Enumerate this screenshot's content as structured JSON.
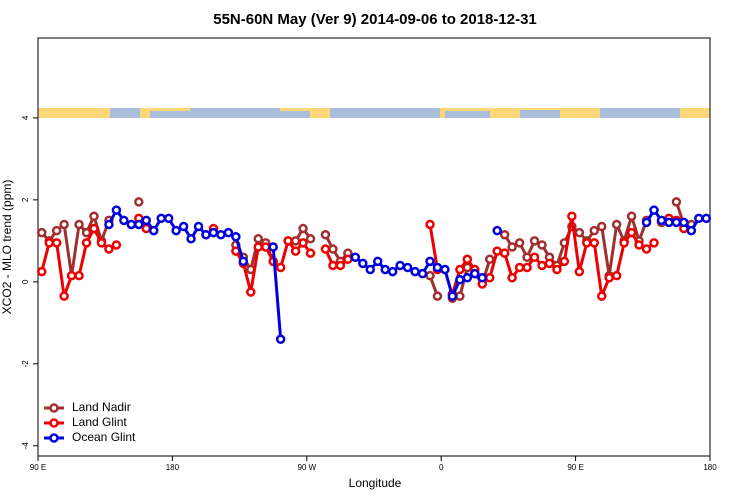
{
  "chart_data": {
    "type": "line",
    "title": "55N-60N May (Ver 9)   2014-09-06 to 2018-12-31",
    "x_label": "Longitude",
    "y_label": "XCO2 - MLO trend (ppm)",
    "x": [
      92.5,
      97.5,
      102.5,
      107.5,
      112.5,
      117.5,
      122.5,
      127.5,
      132.5,
      137.5,
      142.5,
      147.5,
      152.5,
      157.5,
      162.5,
      167.5,
      172.5,
      177.5,
      182.5,
      187.5,
      192.5,
      197.5,
      202.5,
      207.5,
      212.5,
      217.5,
      222.5,
      227.5,
      232.5,
      237.5,
      242.5,
      247.5,
      252.5,
      257.5,
      262.5,
      267.5,
      272.5,
      277.5,
      282.5,
      287.5,
      292.5,
      297.5,
      302.5,
      307.5,
      312.5,
      317.5,
      322.5,
      327.5,
      332.5,
      337.5,
      342.5,
      347.5,
      352.5,
      357.5,
      362.5,
      367.5,
      372.5,
      377.5,
      382.5,
      387.5,
      392.5,
      397.5,
      402.5,
      407.5,
      412.5,
      417.5,
      422.5,
      427.5,
      432.5,
      437.5,
      442.5,
      447.5,
      452.5,
      457.5,
      462.5,
      467.5,
      472.5,
      477.5,
      482.5,
      487.5,
      492.5,
      497.5,
      502.5,
      507.5,
      512.5,
      517.5,
      522.5,
      527.5,
      532.5,
      537.5
    ],
    "series": [
      {
        "name": "Land Nadir",
        "color": "#a03030",
        "values": [
          1.2,
          1.0,
          1.25,
          1.4,
          0.15,
          1.4,
          1.2,
          1.6,
          1.0,
          1.5,
          null,
          null,
          null,
          1.95,
          null,
          null,
          null,
          null,
          null,
          null,
          null,
          null,
          null,
          null,
          null,
          null,
          0.9,
          0.6,
          0.3,
          1.05,
          0.95,
          0.5,
          null,
          1.0,
          1.0,
          1.3,
          1.05,
          null,
          1.15,
          0.8,
          0.5,
          0.7,
          null,
          null,
          null,
          null,
          null,
          null,
          null,
          null,
          null,
          null,
          0.15,
          -0.35,
          null,
          -0.4,
          -0.35,
          0.35,
          0.2,
          -0.05,
          0.55,
          null,
          1.15,
          0.85,
          0.95,
          0.6,
          1.0,
          0.9,
          0.6,
          0.4,
          0.95,
          1.35,
          1.2,
          1.0,
          1.25,
          1.35,
          0.15,
          1.4,
          1.0,
          1.6,
          1.0,
          1.5,
          null,
          1.45,
          null,
          1.95,
          1.4,
          1.4,
          null,
          null
        ]
      },
      {
        "name": "Land Glint",
        "color": "#ee0000",
        "values": [
          0.25,
          0.95,
          0.95,
          -0.35,
          0.15,
          0.15,
          0.95,
          1.3,
          0.95,
          0.8,
          0.9,
          null,
          null,
          1.55,
          1.3,
          null,
          null,
          null,
          null,
          null,
          null,
          null,
          1.15,
          1.3,
          null,
          null,
          0.75,
          0.45,
          -0.25,
          0.85,
          0.85,
          0.5,
          0.35,
          1.0,
          0.75,
          0.95,
          0.7,
          null,
          0.8,
          0.4,
          0.4,
          0.55,
          null,
          null,
          null,
          null,
          null,
          null,
          null,
          null,
          null,
          null,
          1.4,
          0.3,
          null,
          -0.3,
          0.3,
          0.55,
          0.3,
          -0.05,
          0.1,
          0.75,
          0.7,
          0.1,
          0.35,
          0.35,
          0.6,
          0.4,
          0.45,
          0.3,
          0.5,
          1.6,
          0.25,
          0.95,
          0.95,
          -0.35,
          0.1,
          0.15,
          0.95,
          1.2,
          0.9,
          0.8,
          0.95,
          null,
          1.55,
          1.5,
          1.3,
          null,
          null,
          null
        ]
      },
      {
        "name": "Ocean Glint",
        "color": "#0000dd",
        "values": [
          null,
          null,
          null,
          null,
          null,
          null,
          null,
          null,
          null,
          1.4,
          1.75,
          1.5,
          1.4,
          1.4,
          1.5,
          1.25,
          1.55,
          1.55,
          1.25,
          1.35,
          1.05,
          1.35,
          1.15,
          1.2,
          1.15,
          1.2,
          1.1,
          0.5,
          null,
          null,
          null,
          0.85,
          -1.4,
          null,
          null,
          null,
          null,
          null,
          null,
          null,
          null,
          null,
          0.6,
          0.45,
          0.3,
          0.5,
          0.3,
          0.25,
          0.4,
          0.35,
          0.25,
          0.2,
          0.5,
          0.35,
          0.3,
          -0.35,
          0.05,
          0.1,
          0.2,
          0.1,
          null,
          1.25,
          null,
          null,
          null,
          null,
          null,
          null,
          null,
          null,
          null,
          null,
          null,
          null,
          null,
          null,
          null,
          null,
          null,
          null,
          null,
          1.45,
          1.75,
          1.5,
          1.45,
          1.45,
          1.45,
          1.25,
          1.55,
          1.55
        ]
      }
    ],
    "xlim": [
      90,
      540
    ],
    "xticks": [
      {
        "value": 90,
        "label": "90 E"
      },
      180,
      {
        "value": 270,
        "label": "90 W"
      },
      {
        "value": 360,
        "label": "0"
      },
      {
        "value": 450,
        "label": "90 E"
      },
      {
        "value": 540,
        "label": "180"
      }
    ],
    "ylim": [
      -4.25,
      5.95
    ],
    "yticks": [
      -4,
      -2,
      0,
      2,
      4
    ],
    "legend": "bottom-left"
  }
}
